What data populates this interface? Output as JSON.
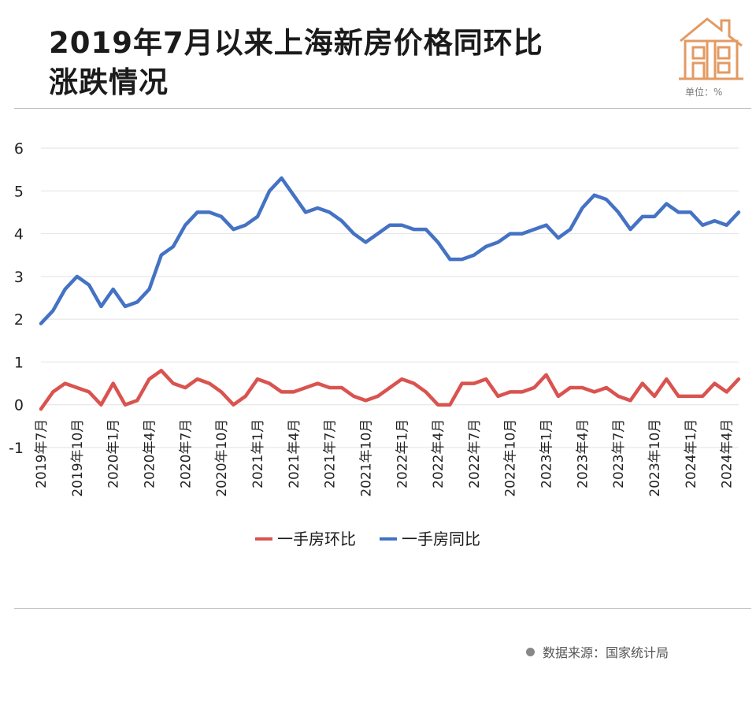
{
  "header": {
    "title_line1": "2019年7月以来上海新房价格同环比",
    "title_line2": "涨跌情况",
    "unit": "单位：%"
  },
  "footer": {
    "source": "数据来源：国家统计局"
  },
  "colors": {
    "yoy": "#4472c4",
    "mom": "#d9534f",
    "grid": "#e2e2e2"
  },
  "chart_data": {
    "type": "line",
    "title": "2019年7月以来上海新房价格同环比涨跌情况",
    "ylabel": "",
    "ylim": [
      -1,
      6
    ],
    "yticks": [
      -1,
      0,
      1,
      2,
      3,
      4,
      5,
      6
    ],
    "grid": true,
    "legend": "bottom",
    "x": [
      "2019-07",
      "2019-08",
      "2019-09",
      "2019-10",
      "2019-11",
      "2019-12",
      "2020-01",
      "2020-02",
      "2020-03",
      "2020-04",
      "2020-05",
      "2020-06",
      "2020-07",
      "2020-08",
      "2020-09",
      "2020-10",
      "2020-11",
      "2020-12",
      "2021-01",
      "2021-02",
      "2021-03",
      "2021-04",
      "2021-05",
      "2021-06",
      "2021-07",
      "2021-08",
      "2021-09",
      "2021-10",
      "2021-11",
      "2021-12",
      "2022-01",
      "2022-02",
      "2022-03",
      "2022-04",
      "2022-05",
      "2022-06",
      "2022-07",
      "2022-08",
      "2022-09",
      "2022-10",
      "2022-11",
      "2022-12",
      "2023-01",
      "2023-02",
      "2023-03",
      "2023-04",
      "2023-05",
      "2023-06",
      "2023-07",
      "2023-08",
      "2023-09",
      "2023-10",
      "2023-11",
      "2023-12",
      "2024-01",
      "2024-02",
      "2024-03",
      "2024-04",
      "2024-05"
    ],
    "xticklabels": [
      "2019年7月",
      "2019年10月",
      "2020年1月",
      "2020年4月",
      "2020年7月",
      "2020年10月",
      "2021年1月",
      "2021年4月",
      "2021年7月",
      "2021年10月",
      "2022年1月",
      "2022年4月",
      "2022年7月",
      "2022年10月",
      "2023年1月",
      "2023年4月",
      "2023年7月",
      "2023年10月",
      "2024年1月",
      "2024年4月"
    ],
    "series": [
      {
        "name": "一手房环比",
        "values": [
          -0.1,
          0.3,
          0.5,
          0.4,
          0.3,
          0.0,
          0.5,
          0.0,
          0.1,
          0.6,
          0.8,
          0.5,
          0.4,
          0.6,
          0.5,
          0.3,
          0.0,
          0.2,
          0.6,
          0.5,
          0.3,
          0.3,
          0.4,
          0.5,
          0.4,
          0.4,
          0.2,
          0.1,
          0.2,
          0.4,
          0.6,
          0.5,
          0.3,
          0.0,
          0.0,
          0.5,
          0.5,
          0.6,
          0.2,
          0.3,
          0.3,
          0.4,
          0.7,
          0.2,
          0.4,
          0.4,
          0.3,
          0.4,
          0.2,
          0.1,
          0.5,
          0.2,
          0.6,
          0.2,
          0.2,
          0.2,
          0.5,
          0.3,
          0.6
        ]
      },
      {
        "name": "一手房同比",
        "values": [
          1.9,
          2.2,
          2.7,
          3.0,
          2.8,
          2.3,
          2.7,
          2.3,
          2.4,
          2.7,
          3.5,
          3.7,
          4.2,
          4.5,
          4.5,
          4.4,
          4.1,
          4.2,
          4.4,
          5.0,
          5.3,
          4.9,
          4.5,
          4.6,
          4.5,
          4.3,
          4.0,
          3.8,
          4.0,
          4.2,
          4.2,
          4.1,
          4.1,
          3.8,
          3.4,
          3.4,
          3.5,
          3.7,
          3.8,
          4.0,
          4.0,
          4.1,
          4.2,
          3.9,
          4.1,
          4.6,
          4.9,
          4.8,
          4.5,
          4.1,
          4.4,
          4.4,
          4.7,
          4.5,
          4.5,
          4.2,
          4.3,
          4.2,
          4.5
        ]
      }
    ]
  }
}
